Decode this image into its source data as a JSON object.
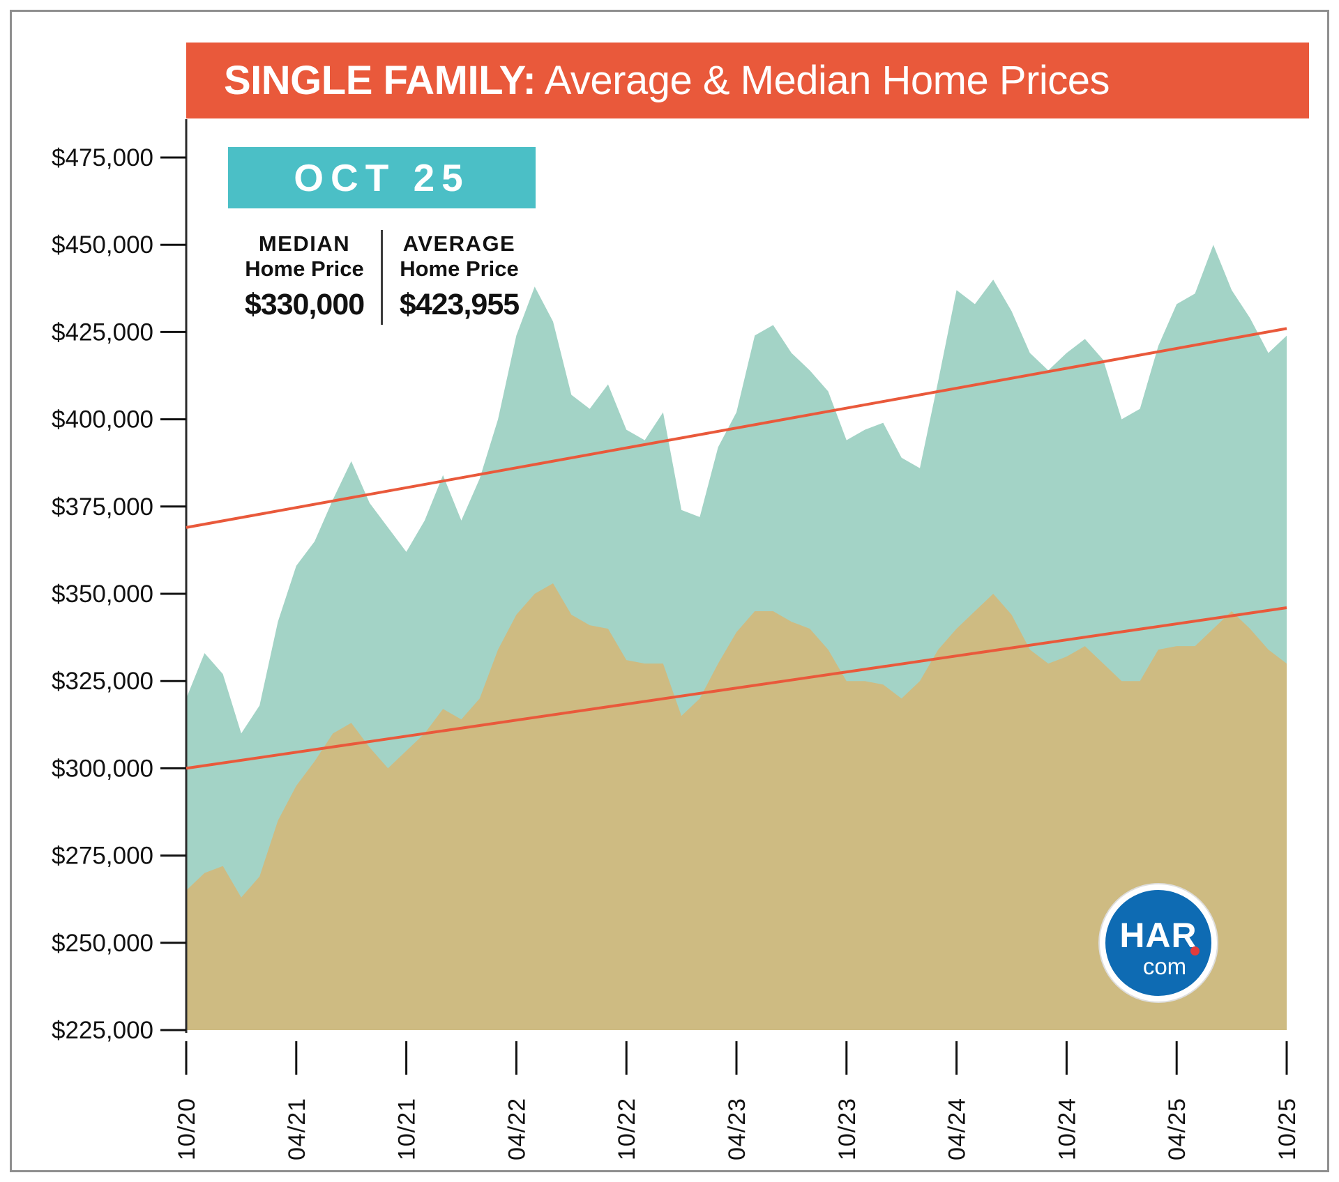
{
  "title": {
    "bold": "SINGLE FAMILY:",
    "rest": " Average & Median Home Prices"
  },
  "badge": {
    "label": "OCT 25"
  },
  "stats": {
    "median": {
      "label": "MEDIAN",
      "sublabel": "Home Price",
      "value": "$330,000"
    },
    "average": {
      "label": "AVERAGE",
      "sublabel": "Home Price",
      "value": "$423,955"
    }
  },
  "logo": {
    "main": "HAR",
    "sub": "com"
  },
  "colors": {
    "header_bg": "#E9593B",
    "badge_bg": "#4BBFC6",
    "average_area": "#A3D3C6",
    "median_area": "#CEBB82",
    "trend_line": "#E9593B",
    "har_blue": "#0E6BB3",
    "har_red": "#E23B3C",
    "axis_text": "#111111",
    "frame_border": "#8F8F8F"
  },
  "chart_data": {
    "type": "area",
    "title": "SINGLE FAMILY: Average & Median Home Prices",
    "x_unit": "month",
    "x_range": [
      "10/20",
      "10/25"
    ],
    "months": 61,
    "ylim": [
      225000,
      486000
    ],
    "grid": false,
    "legend_position": "none",
    "series": [
      {
        "name": "Average Home Price",
        "data_name": "average-price-area",
        "color": "#A3D3C6",
        "values": [
          320000,
          333000,
          327000,
          310000,
          318000,
          342000,
          358000,
          365000,
          377000,
          388000,
          376000,
          369000,
          362000,
          371000,
          384000,
          371000,
          383000,
          400000,
          424000,
          438000,
          428000,
          407000,
          403000,
          410000,
          397000,
          394000,
          402000,
          374000,
          372000,
          392000,
          402000,
          424000,
          427000,
          419000,
          414000,
          408000,
          394000,
          397000,
          399000,
          389000,
          386000,
          411000,
          437000,
          433000,
          440000,
          431000,
          419000,
          414000,
          419000,
          423000,
          417000,
          400000,
          403000,
          421000,
          433000,
          436000,
          450000,
          437000,
          429000,
          419000,
          423955
        ]
      },
      {
        "name": "Median Home Price",
        "data_name": "median-price-area",
        "color": "#CEBB82",
        "values": [
          265000,
          270000,
          272000,
          263000,
          269000,
          285000,
          295000,
          302000,
          310000,
          313000,
          306000,
          300000,
          305000,
          310000,
          317000,
          314000,
          320000,
          334000,
          344000,
          350000,
          353000,
          344000,
          341000,
          340000,
          331000,
          330000,
          330000,
          315000,
          320000,
          330000,
          339000,
          345000,
          345000,
          342000,
          340000,
          334000,
          325000,
          325000,
          324000,
          320000,
          325000,
          334000,
          340000,
          345000,
          350000,
          344000,
          334000,
          330000,
          332000,
          335000,
          330000,
          325000,
          325000,
          334000,
          335000,
          335000,
          340000,
          345000,
          340000,
          334000,
          330000
        ]
      }
    ],
    "trendlines": [
      {
        "name": "Average Home Price trend",
        "data_name": "average-trendline",
        "start": 369000,
        "end": 426000,
        "color": "#E9593B"
      },
      {
        "name": "Median Home Price trend",
        "data_name": "median-trendline",
        "start": 300000,
        "end": 346000,
        "color": "#E9593B"
      }
    ],
    "y_ticks": [
      {
        "value": 475000,
        "label": "$475,000"
      },
      {
        "value": 450000,
        "label": "$450,000"
      },
      {
        "value": 425000,
        "label": "$425,000"
      },
      {
        "value": 400000,
        "label": "$400,000"
      },
      {
        "value": 375000,
        "label": "$375,000"
      },
      {
        "value": 350000,
        "label": "$350,000"
      },
      {
        "value": 325000,
        "label": "$325,000"
      },
      {
        "value": 300000,
        "label": "$300,000"
      },
      {
        "value": 275000,
        "label": "$275,000"
      },
      {
        "value": 250000,
        "label": "$250,000"
      },
      {
        "value": 225000,
        "label": "$225,000"
      }
    ],
    "x_ticks": [
      {
        "index": 0,
        "label": "10/20"
      },
      {
        "index": 6,
        "label": "04/21"
      },
      {
        "index": 12,
        "label": "10/21"
      },
      {
        "index": 18,
        "label": "04/22"
      },
      {
        "index": 24,
        "label": "10/22"
      },
      {
        "index": 30,
        "label": "04/23"
      },
      {
        "index": 36,
        "label": "10/23"
      },
      {
        "index": 42,
        "label": "04/24"
      },
      {
        "index": 48,
        "label": "10/24"
      },
      {
        "index": 54,
        "label": "04/25"
      },
      {
        "index": 60,
        "label": "10/25"
      }
    ],
    "latest": {
      "month": "OCT 25",
      "median": 330000,
      "average": 423955
    }
  }
}
